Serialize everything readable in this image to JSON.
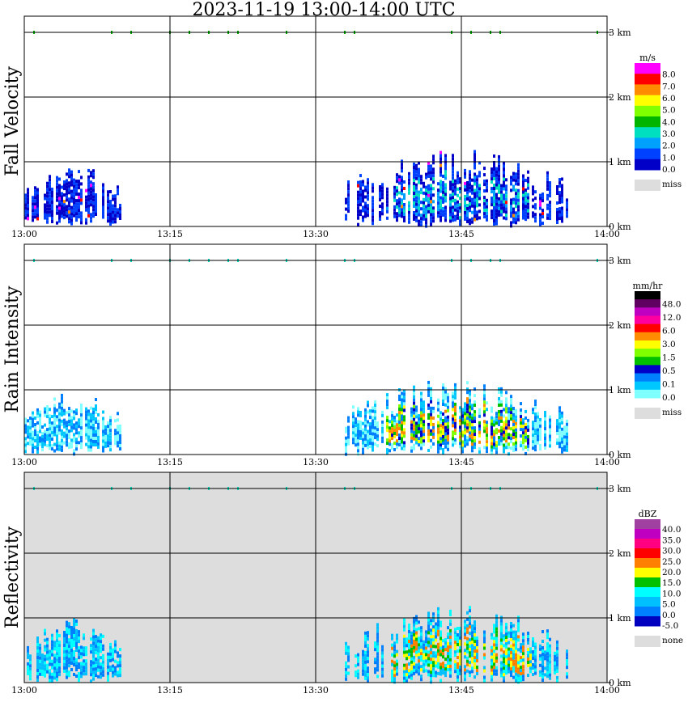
{
  "title": "2023-11-19   13:00-14:00 UTC",
  "chart_data": [
    {
      "type": "heatmap",
      "ylabel": "Fall Velocity",
      "x_ticks": [
        "13:00",
        "13:15",
        "13:30",
        "13:45",
        "14:00"
      ],
      "y_ticks": [
        "0 km",
        "1 km",
        "2 km",
        "3 km"
      ],
      "ylim": [
        0,
        3
      ],
      "grid": true,
      "background": "#ffffff",
      "colorbar": {
        "unit": "m/s",
        "labels": [
          "8.0",
          "7.0",
          "6.0",
          "5.0",
          "4.0",
          "3.0",
          "2.0",
          "1.0",
          "0.0"
        ],
        "colors": [
          "#ff00ff",
          "#ff0000",
          "#ff8c00",
          "#ffff00",
          "#80ff00",
          "#00b400",
          "#00e0c0",
          "#00a0ff",
          "#0040ff",
          "#0000c8"
        ],
        "miss_label": "miss",
        "miss_color": "#dddddd"
      },
      "echo_regions": [
        {
          "t_start": "13:00",
          "t_end": "13:10",
          "top_km": 1.0,
          "dominant": "1.0"
        },
        {
          "t_start": "13:33",
          "t_end": "13:56",
          "top_km": 1.2,
          "dominant": "1.0"
        }
      ]
    },
    {
      "type": "heatmap",
      "ylabel": "Rain Intensity",
      "x_ticks": [
        "13:00",
        "13:15",
        "13:30",
        "13:45",
        "14:00"
      ],
      "y_ticks": [
        "0 km",
        "1 km",
        "2 km",
        "3 km"
      ],
      "ylim": [
        0,
        3
      ],
      "grid": true,
      "background": "#ffffff",
      "colorbar": {
        "unit": "mm/hr",
        "labels": [
          "48.0",
          "12.0",
          "6.0",
          "3.0",
          "1.5",
          "0.5",
          "0.1",
          "0.0"
        ],
        "colors": [
          "#000000",
          "#600060",
          "#c000c0",
          "#ff00a0",
          "#ff0000",
          "#ff8c00",
          "#ffff00",
          "#80ff00",
          "#00c000",
          "#0000c8",
          "#0080ff",
          "#00c8ff",
          "#80ffff"
        ],
        "miss_label": "miss",
        "miss_color": "#dddddd"
      },
      "echo_regions": [
        {
          "t_start": "13:00",
          "t_end": "13:10",
          "top_km": 1.0,
          "dominant": "0.1"
        },
        {
          "t_start": "13:33",
          "t_end": "13:56",
          "top_km": 1.2,
          "dominant": "1.5"
        }
      ]
    },
    {
      "type": "heatmap",
      "ylabel": "Reflectivity",
      "x_ticks": [
        "13:00",
        "13:15",
        "13:30",
        "13:45",
        "14:00"
      ],
      "y_ticks": [
        "0 km",
        "1 km",
        "2 km",
        "3 km"
      ],
      "ylim": [
        0,
        3
      ],
      "grid": true,
      "background": "#dddddd",
      "colorbar": {
        "unit": "dBZ",
        "labels": [
          "40.0",
          "35.0",
          "30.0",
          "25.0",
          "20.0",
          "15.0",
          "10.0",
          "5.0",
          "0.0",
          "-5.0"
        ],
        "colors": [
          "#a040a0",
          "#c000c0",
          "#ff0080",
          "#ff0000",
          "#ff8000",
          "#ffff00",
          "#00c000",
          "#00ffff",
          "#00c0ff",
          "#0080ff",
          "#0000c0"
        ],
        "miss_label": "none",
        "miss_color": "#dddddd"
      },
      "echo_regions": [
        {
          "t_start": "13:00",
          "t_end": "13:10",
          "top_km": 1.0,
          "dominant": "10.0"
        },
        {
          "t_start": "13:33",
          "t_end": "13:56",
          "top_km": 1.2,
          "dominant": "15.0"
        }
      ]
    }
  ]
}
